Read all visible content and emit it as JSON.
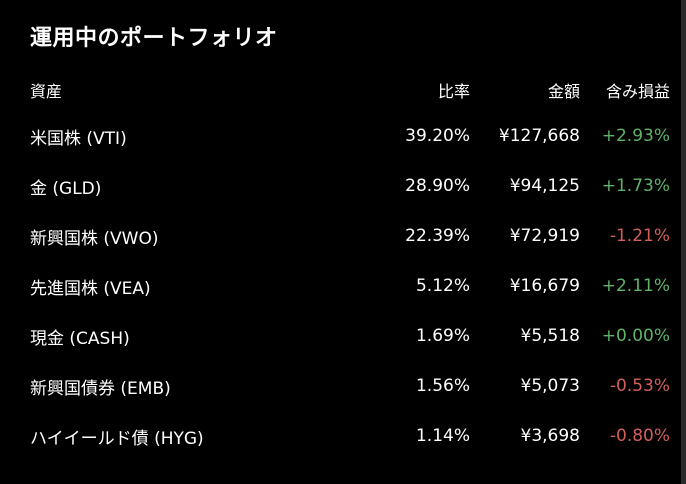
{
  "title": "運用中のポートフォリオ",
  "columns": {
    "name": "資産",
    "ratio": "比率",
    "amount": "金額",
    "pl": "含み損益"
  },
  "colors": {
    "gain": "#5fb36a",
    "loss": "#d25f5c",
    "background": "#000000"
  },
  "rows": [
    {
      "name": "米国株 (VTI)",
      "ratio": "39.20%",
      "amount": "¥127,668",
      "pl": "+2.93%",
      "pl_sign": "pos"
    },
    {
      "name": "金 (GLD)",
      "ratio": "28.90%",
      "amount": "¥94,125",
      "pl": "+1.73%",
      "pl_sign": "pos"
    },
    {
      "name": "新興国株 (VWO)",
      "ratio": "22.39%",
      "amount": "¥72,919",
      "pl": "-1.21%",
      "pl_sign": "neg"
    },
    {
      "name": "先進国株 (VEA)",
      "ratio": "5.12%",
      "amount": "¥16,679",
      "pl": "+2.11%",
      "pl_sign": "pos"
    },
    {
      "name": "現金 (CASH)",
      "ratio": "1.69%",
      "amount": "¥5,518",
      "pl": "+0.00%",
      "pl_sign": "pos"
    },
    {
      "name": "新興国債券 (EMB)",
      "ratio": "1.56%",
      "amount": "¥5,073",
      "pl": "-0.53%",
      "pl_sign": "neg"
    },
    {
      "name": "ハイイールド債 (HYG)",
      "ratio": "1.14%",
      "amount": "¥3,698",
      "pl": "-0.80%",
      "pl_sign": "neg"
    }
  ]
}
